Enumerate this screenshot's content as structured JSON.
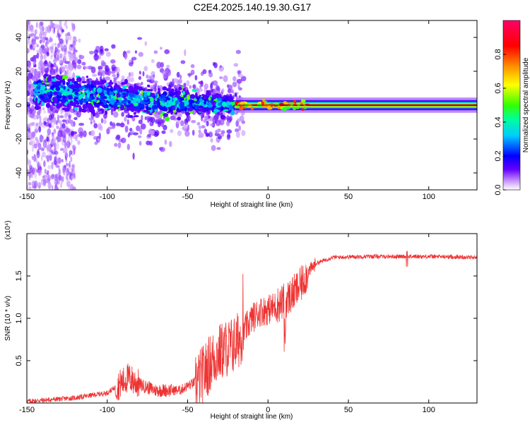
{
  "chart_data": [
    {
      "type": "heatmap",
      "title": "C2E4.2025.140.19.30.G17",
      "xlabel": "Height of straight line (km)",
      "ylabel": "Frequency (Hz)",
      "xlim": [
        -150,
        130
      ],
      "ylim": [
        -50,
        50
      ],
      "xticks": [
        -150,
        -100,
        -50,
        0,
        50,
        100
      ],
      "yticks": [
        -40,
        -20,
        0,
        20,
        40
      ],
      "colorbar": {
        "label": "Normalized spectral amplitude",
        "range": [
          0,
          1
        ],
        "ticks": [
          "0.0",
          "0.2",
          "0.4",
          "0.6",
          "0.8"
        ],
        "colors": [
          "#ffffff",
          "#cc99ff",
          "#6600ff",
          "#0000ff",
          "#00ccff",
          "#00ff99",
          "#33ff00",
          "#ffff00",
          "#ff9900",
          "#ff0000",
          "#ff0066"
        ]
      },
      "ridge": [
        {
          "x": -140,
          "freq": 9
        },
        {
          "x": -120,
          "freq": 7
        },
        {
          "x": -100,
          "freq": 5
        },
        {
          "x": -80,
          "freq": 3
        },
        {
          "x": -60,
          "freq": 2
        },
        {
          "x": -40,
          "freq": 1
        },
        {
          "x": -20,
          "freq": 0.5
        },
        {
          "x": 0,
          "freq": 0.3
        },
        {
          "x": 20,
          "freq": 0
        },
        {
          "x": 130,
          "freq": 0
        }
      ]
    },
    {
      "type": "line",
      "xlabel": "Height of straight line (km)",
      "ylabel": "SNR (10 * v/v)",
      "yscale_label": "(x10⁴)",
      "xlim": [
        -150,
        130
      ],
      "ylim": [
        0,
        2
      ],
      "xticks": [
        -150,
        -100,
        -50,
        0,
        50,
        100
      ],
      "yticks": [
        0.5,
        1.0,
        1.5
      ],
      "ytick_labels": [
        "0.5",
        "1.0",
        "1.5"
      ],
      "color": "#ee3333",
      "series_trend": [
        {
          "x": -150,
          "y": 0.02
        },
        {
          "x": -120,
          "y": 0.06
        },
        {
          "x": -100,
          "y": 0.12
        },
        {
          "x": -90,
          "y": 0.25
        },
        {
          "x": -87,
          "y": 0.3
        },
        {
          "x": -80,
          "y": 0.22
        },
        {
          "x": -70,
          "y": 0.15
        },
        {
          "x": -55,
          "y": 0.15
        },
        {
          "x": -45,
          "y": 0.25
        },
        {
          "x": -40,
          "y": 0.35
        },
        {
          "x": -35,
          "y": 0.5
        },
        {
          "x": -30,
          "y": 0.6
        },
        {
          "x": -25,
          "y": 0.65
        },
        {
          "x": -20,
          "y": 0.7
        },
        {
          "x": -15,
          "y": 0.85
        },
        {
          "x": -10,
          "y": 1.0
        },
        {
          "x": -5,
          "y": 1.08
        },
        {
          "x": 0,
          "y": 1.1
        },
        {
          "x": 5,
          "y": 1.15
        },
        {
          "x": 10,
          "y": 1.2
        },
        {
          "x": 15,
          "y": 1.28
        },
        {
          "x": 20,
          "y": 1.38
        },
        {
          "x": 25,
          "y": 1.55
        },
        {
          "x": 30,
          "y": 1.65
        },
        {
          "x": 40,
          "y": 1.72
        },
        {
          "x": 60,
          "y": 1.73
        },
        {
          "x": 85,
          "y": 1.73
        },
        {
          "x": 100,
          "y": 1.73
        },
        {
          "x": 130,
          "y": 1.72
        }
      ]
    }
  ]
}
